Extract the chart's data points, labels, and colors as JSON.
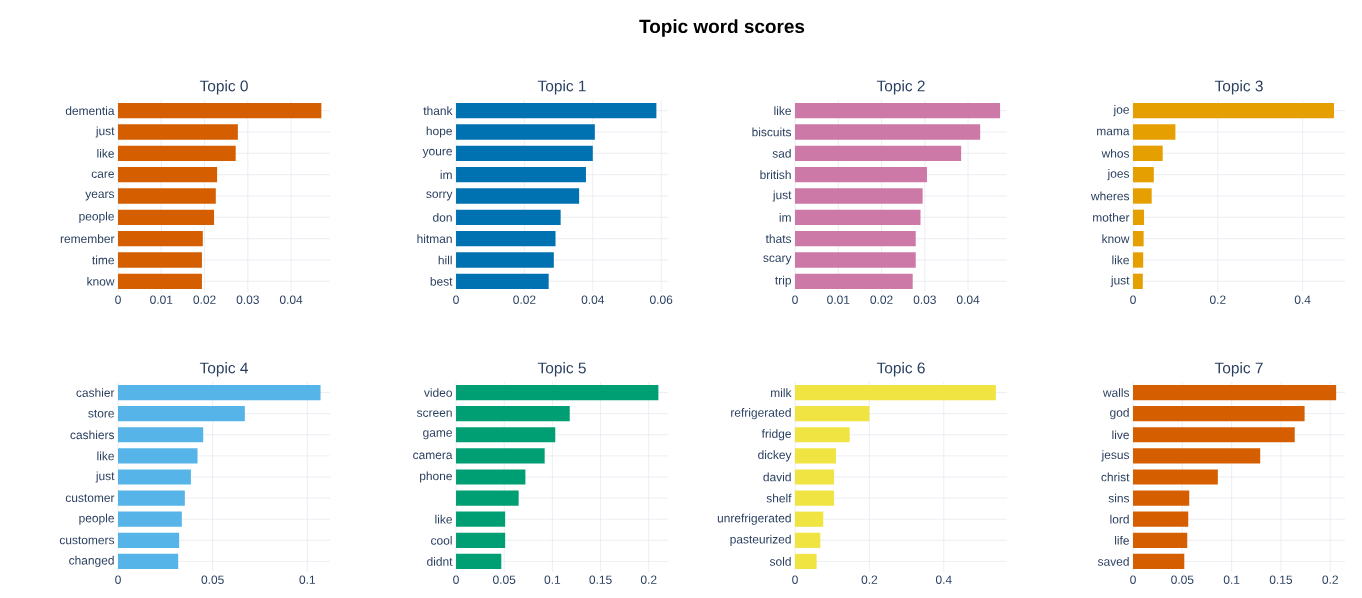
{
  "chart_data": [
    {
      "type": "bar",
      "orientation": "horizontal",
      "title": "Topic 0",
      "annotations": [
        "Topic word scores"
      ],
      "categories": [
        "dementia",
        "just",
        "like",
        "care",
        "years",
        "people",
        "remember",
        "time",
        "know"
      ],
      "values": [
        0.047,
        0.0277,
        0.0272,
        0.0229,
        0.0226,
        0.0222,
        0.0196,
        0.0194,
        0.0194
      ],
      "color": "#d55e00",
      "xlim": [
        0,
        0.049
      ],
      "xticks": [
        0,
        0.01,
        0.02,
        0.03,
        0.04
      ],
      "grid": true
    },
    {
      "type": "bar",
      "orientation": "horizontal",
      "title": "Topic 1",
      "categories": [
        "thank",
        "hope",
        "youre",
        "im",
        "sorry",
        "don",
        "hitman",
        "hill",
        "best"
      ],
      "values": [
        0.0586,
        0.0406,
        0.04,
        0.038,
        0.036,
        0.0306,
        0.0291,
        0.0286,
        0.0271
      ],
      "color": "#0072b2",
      "xlim": [
        0,
        0.062
      ],
      "xticks": [
        0,
        0.02,
        0.04,
        0.06
      ],
      "grid": true
    },
    {
      "type": "bar",
      "orientation": "horizontal",
      "title": "Topic 2",
      "categories": [
        "like",
        "biscuits",
        "sad",
        "british",
        "just",
        "im",
        "thats",
        "scary",
        "trip"
      ],
      "values": [
        0.0474,
        0.0428,
        0.0384,
        0.0305,
        0.0295,
        0.029,
        0.0279,
        0.0279,
        0.0272
      ],
      "color": "#cc79a7",
      "xlim": [
        0,
        0.049
      ],
      "xticks": [
        0,
        0.01,
        0.02,
        0.03,
        0.04
      ],
      "grid": true
    },
    {
      "type": "bar",
      "orientation": "horizontal",
      "title": "Topic 3",
      "categories": [
        "joe",
        "mama",
        "whos",
        "joes",
        "wheres",
        "mother",
        "know",
        "like",
        "just"
      ],
      "values": [
        0.474,
        0.1,
        0.07,
        0.049,
        0.044,
        0.026,
        0.025,
        0.024,
        0.023
      ],
      "color": "#e69f00",
      "xlim": [
        0,
        0.5
      ],
      "xticks": [
        0,
        0.2,
        0.4
      ],
      "grid": true
    },
    {
      "type": "bar",
      "orientation": "horizontal",
      "title": "Topic 4",
      "categories": [
        "cashier",
        "store",
        "cashiers",
        "like",
        "just",
        "customer",
        "people",
        "customers",
        "changed"
      ],
      "values": [
        0.107,
        0.067,
        0.045,
        0.042,
        0.0385,
        0.0353,
        0.0337,
        0.0323,
        0.0318
      ],
      "color": "#56b4e9",
      "xlim": [
        0,
        0.112
      ],
      "xticks": [
        0,
        0.05,
        0.1
      ],
      "grid": true
    },
    {
      "type": "bar",
      "orientation": "horizontal",
      "title": "Topic 5",
      "categories": [
        "video",
        "screen",
        "game",
        "camera",
        "phone",
        null,
        "like",
        "cool",
        "didnt"
      ],
      "values": [
        0.21,
        0.118,
        0.103,
        0.092,
        0.072,
        0.065,
        0.051,
        0.051,
        0.047
      ],
      "color": "#009e73",
      "xlim": [
        0,
        0.22
      ],
      "xticks": [
        0,
        0.05,
        0.1,
        0.15,
        0.2
      ],
      "grid": true
    },
    {
      "type": "bar",
      "orientation": "horizontal",
      "title": "Topic 6",
      "categories": [
        "milk",
        "refrigerated",
        "fridge",
        "dickey",
        "david",
        "shelf",
        "unrefrigerated",
        "pasteurized",
        "sold"
      ],
      "values": [
        0.54,
        0.2,
        0.147,
        0.11,
        0.105,
        0.105,
        0.076,
        0.068,
        0.058
      ],
      "color": "#f0e442",
      "xlim": [
        0,
        0.57
      ],
      "xticks": [
        0,
        0.2,
        0.4
      ],
      "grid": true
    },
    {
      "type": "bar",
      "orientation": "horizontal",
      "title": "Topic 7",
      "categories": [
        "walls",
        "god",
        "live",
        "jesus",
        "christ",
        "sins",
        "lord",
        "life",
        "saved"
      ],
      "values": [
        0.206,
        0.174,
        0.164,
        0.129,
        0.086,
        0.057,
        0.056,
        0.055,
        0.052
      ],
      "color": "#d55e00",
      "xlim": [
        0,
        0.215
      ],
      "xticks": [
        0,
        0.05,
        0.1,
        0.15,
        0.2
      ],
      "grid": true
    }
  ]
}
